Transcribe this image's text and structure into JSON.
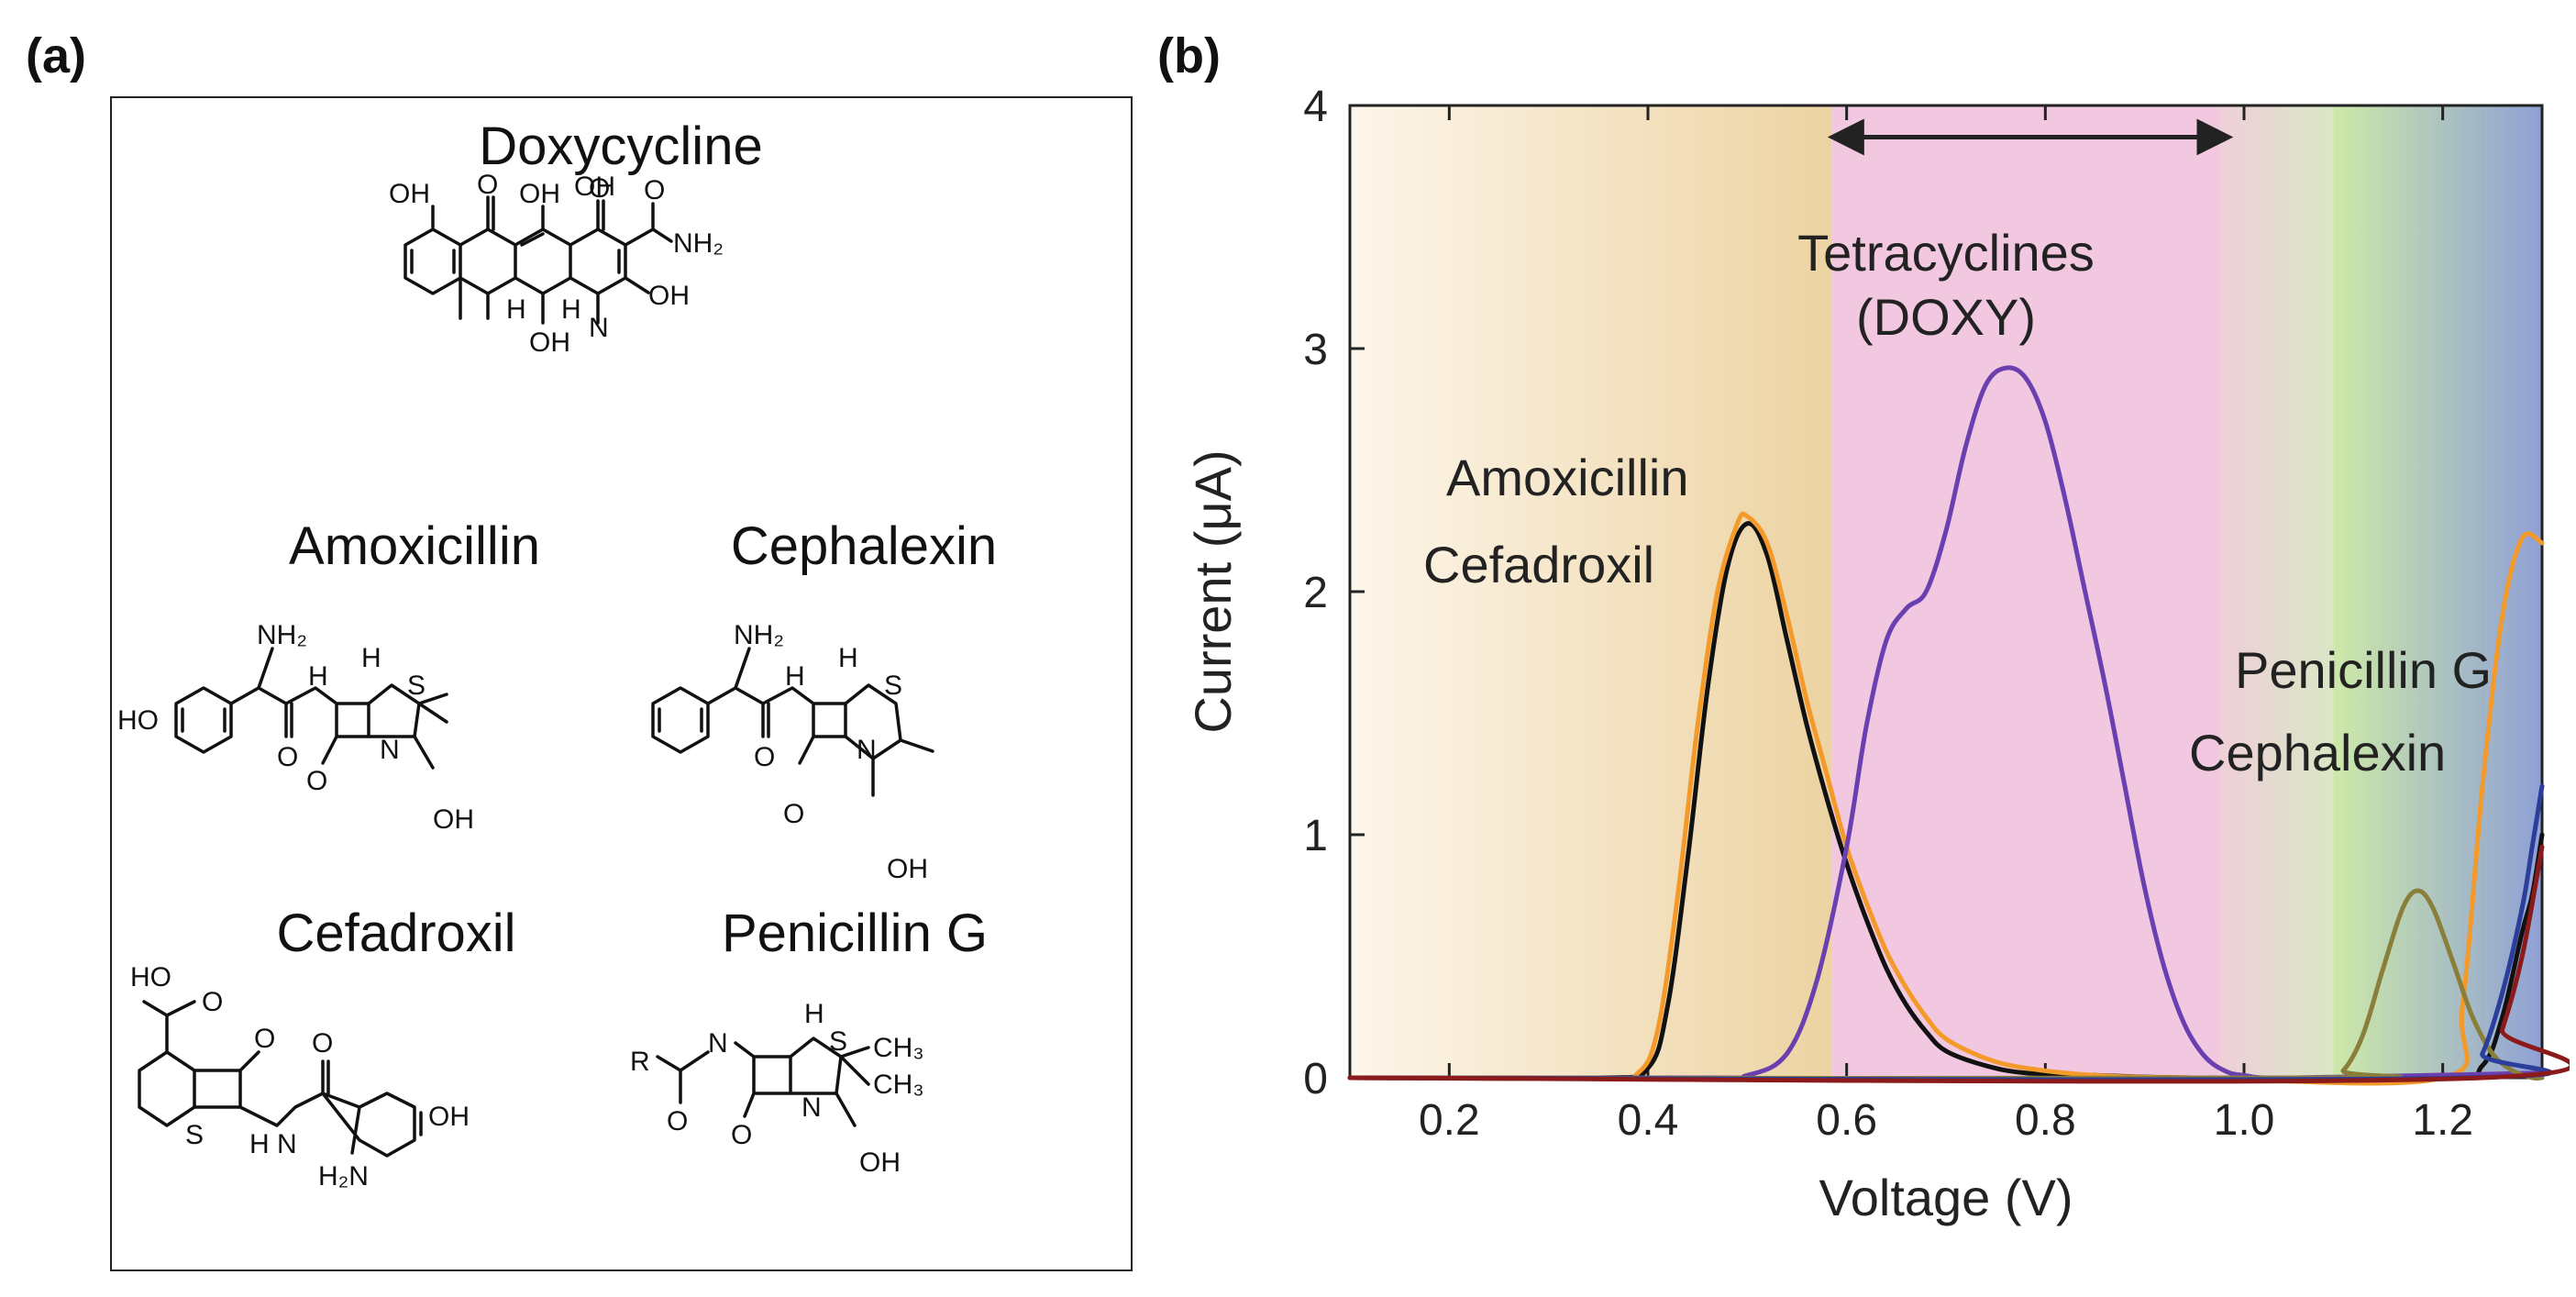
{
  "panel_labels": {
    "a": "(a)",
    "b": "(b)"
  },
  "structures": {
    "doxycycline": "Doxycycline",
    "amoxicillin": "Amoxicillin",
    "cephalexin": "Cephalexin",
    "cefadroxil": "Cefadroxil",
    "penicillin_g": "Penicillin G",
    "atoms": {
      "oh": "OH",
      "o": "O",
      "ho": "HO",
      "h": "H",
      "n": "N",
      "s": "S",
      "nh": "H",
      "nh_n": "N",
      "nh2": "NH₂",
      "h2n": "H₂N",
      "r": "R",
      "ch3": "CH₃"
    }
  },
  "chart_data": {
    "type": "line",
    "title": "",
    "xlabel": "Voltage (V)",
    "ylabel": "Current (μA)",
    "xlim": [
      0.1,
      1.3
    ],
    "ylim": [
      0,
      4
    ],
    "xticks": [
      "0.2",
      "0.4",
      "0.6",
      "0.8",
      "1.0",
      "1.2"
    ],
    "xtick_values": [
      0.2,
      0.4,
      0.6,
      0.8,
      1.0,
      1.2
    ],
    "yticks": [
      "0",
      "1",
      "2",
      "3",
      "4"
    ],
    "ytick_values": [
      0,
      1,
      2,
      3,
      4
    ],
    "regions": [
      {
        "name": "amoxicillin-cefadroxil-region",
        "x0": 0.1,
        "x1": 0.585,
        "color_from": "#fdf6ea",
        "color_to": "#ecd3a2"
      },
      {
        "name": "tetracyclines-region",
        "x0": 0.585,
        "x1": 0.975,
        "color_from": "#f2c8e0",
        "color_to": "#f2c8e0"
      },
      {
        "name": "transition-region",
        "x0": 0.975,
        "x1": 1.09,
        "color_from": "#efcfd8",
        "color_to": "#d9e7c6"
      },
      {
        "name": "penicillin-cephalexin-region",
        "x0": 1.09,
        "x1": 1.3,
        "color_from": "#cde9a8",
        "color_to": "#8fa0d6"
      }
    ],
    "series": [
      {
        "name": "Cefadroxil",
        "color": "#111111",
        "x": [
          0.1,
          0.35,
          0.4,
          0.42,
          0.44,
          0.46,
          0.48,
          0.5,
          0.52,
          0.54,
          0.56,
          0.58,
          0.6,
          0.62,
          0.64,
          0.66,
          0.68,
          0.7,
          0.74,
          0.78,
          0.85,
          0.95,
          1.2,
          1.24,
          1.26,
          1.28,
          1.29,
          1.3
        ],
        "y": [
          0,
          0,
          0.04,
          0.3,
          0.9,
          1.6,
          2.1,
          2.28,
          2.15,
          1.8,
          1.45,
          1.15,
          0.88,
          0.65,
          0.45,
          0.3,
          0.19,
          0.11,
          0.05,
          0.02,
          0.01,
          0,
          0,
          0.05,
          0.25,
          0.6,
          0.75,
          1.0
        ]
      },
      {
        "name": "Amoxicillin",
        "color": "#f39a2b",
        "x": [
          0.1,
          0.35,
          0.39,
          0.41,
          0.43,
          0.45,
          0.47,
          0.49,
          0.5,
          0.52,
          0.54,
          0.56,
          0.58,
          0.6,
          0.62,
          0.64,
          0.66,
          0.68,
          0.7,
          0.74,
          0.78,
          0.85,
          0.95,
          1.2,
          1.22,
          1.24,
          1.26,
          1.28,
          1.3
        ],
        "y": [
          0,
          0,
          0.02,
          0.2,
          0.75,
          1.45,
          2.0,
          2.28,
          2.31,
          2.2,
          1.9,
          1.55,
          1.25,
          0.95,
          0.72,
          0.52,
          0.37,
          0.25,
          0.16,
          0.08,
          0.04,
          0.01,
          0,
          0,
          0.3,
          1.2,
          1.9,
          2.22,
          2.2
        ]
      },
      {
        "name": "Doxycycline",
        "color": "#6a3fb0",
        "x": [
          0.1,
          0.45,
          0.5,
          0.54,
          0.57,
          0.6,
          0.62,
          0.64,
          0.66,
          0.68,
          0.7,
          0.72,
          0.74,
          0.76,
          0.78,
          0.8,
          0.82,
          0.84,
          0.86,
          0.88,
          0.9,
          0.92,
          0.94,
          0.96,
          0.98,
          1.0,
          1.05,
          1.3
        ],
        "y": [
          0,
          0,
          0.01,
          0.1,
          0.4,
          0.95,
          1.45,
          1.8,
          1.93,
          2.0,
          2.25,
          2.6,
          2.85,
          2.92,
          2.88,
          2.7,
          2.38,
          2.0,
          1.62,
          1.2,
          0.78,
          0.45,
          0.22,
          0.09,
          0.03,
          0.01,
          0,
          0.02
        ]
      },
      {
        "name": "Penicillin G",
        "color": "#8a7f3a",
        "x": [
          0.1,
          1.08,
          1.1,
          1.12,
          1.14,
          1.16,
          1.175,
          1.19,
          1.21,
          1.23,
          1.25,
          1.27,
          1.29,
          1.3
        ],
        "y": [
          0,
          0,
          0.03,
          0.18,
          0.45,
          0.7,
          0.77,
          0.7,
          0.48,
          0.25,
          0.1,
          0.03,
          0,
          0
        ]
      },
      {
        "name": "Cephalexin",
        "color": "#2c3e9b",
        "x": [
          0.1,
          1.22,
          1.24,
          1.26,
          1.28,
          1.29,
          1.3
        ],
        "y": [
          0,
          0,
          0.1,
          0.35,
          0.7,
          0.95,
          1.2
        ]
      },
      {
        "name": "Baseline",
        "color": "#8b1a1a",
        "x": [
          0.1,
          1.24,
          1.26,
          1.28,
          1.3
        ],
        "y": [
          0,
          0,
          0.2,
          0.5,
          0.95
        ]
      }
    ],
    "annotations": {
      "amoxicillin": "Amoxicillin",
      "cefadroxil": "Cefadroxil",
      "tetracyclines": "Tetracyclines",
      "doxy": "(DOXY)",
      "penicillin_g": "Penicillin G",
      "cephalexin": "Cephalexin"
    },
    "arrow_range": [
      0.59,
      0.98
    ],
    "arrow_y": 3.87
  }
}
